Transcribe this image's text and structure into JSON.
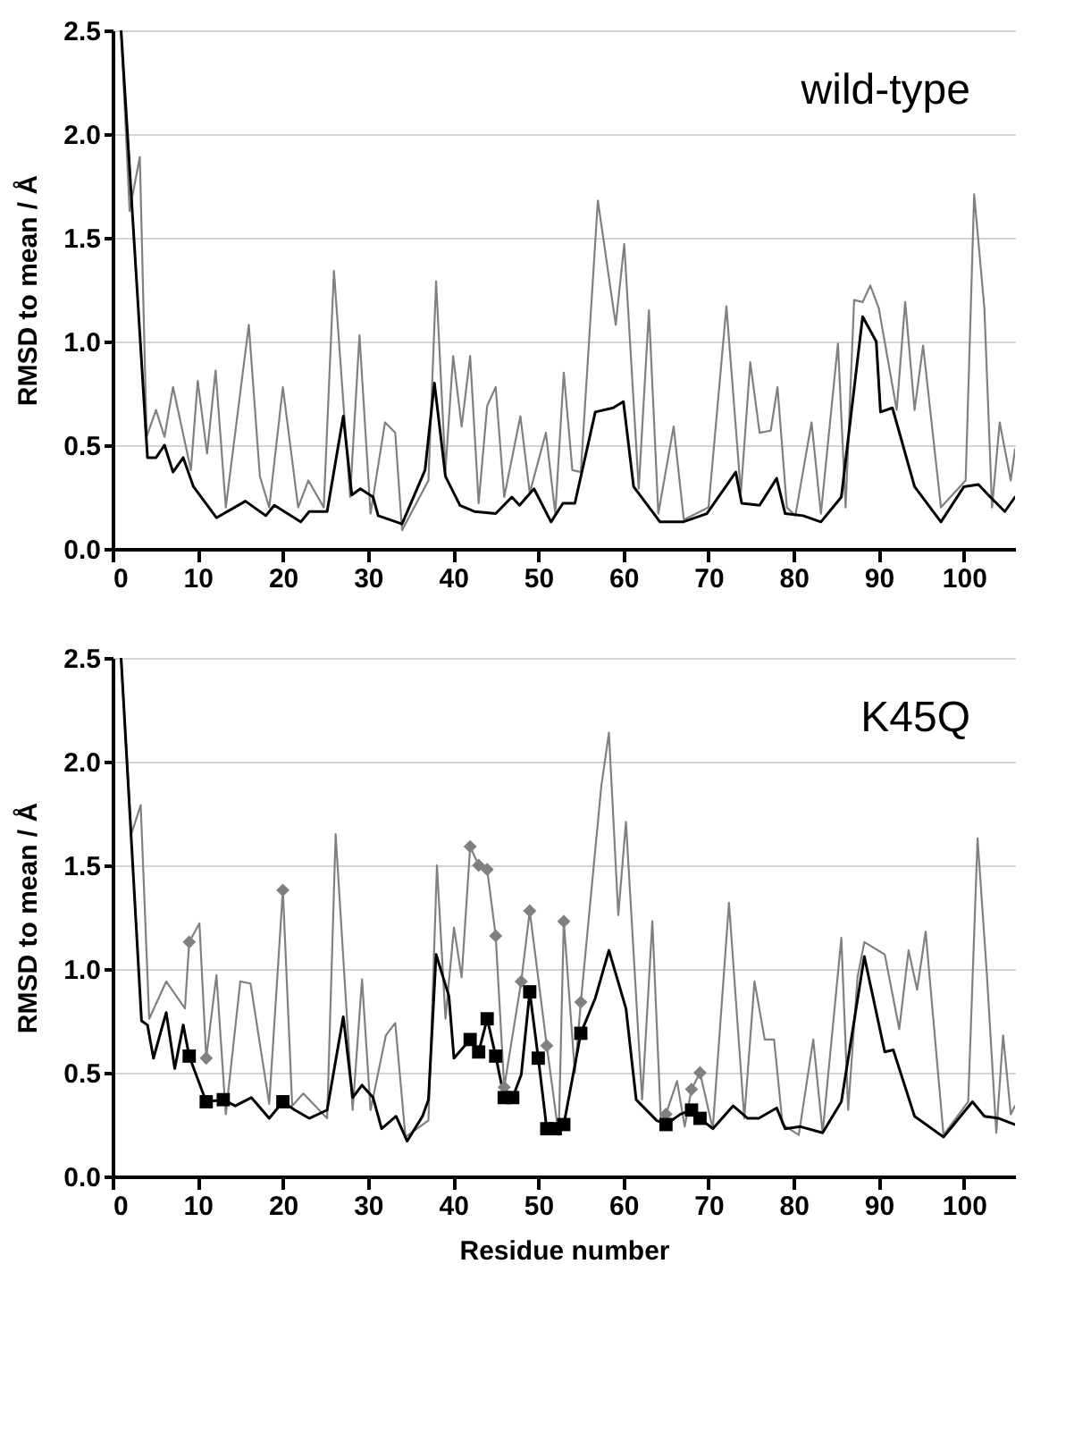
{
  "chart_data": [
    {
      "type": "line",
      "ylabel": "RMSD to mean / Å",
      "annotations": [
        "wild-type"
      ],
      "xlim": [
        0,
        106
      ],
      "xticks": [
        0,
        10,
        20,
        30,
        40,
        50,
        60,
        70,
        80,
        90,
        100
      ],
      "ylim": [
        0,
        2.5
      ],
      "yticks": [
        {
          "value": 0,
          "label": "0.0"
        },
        {
          "value": 0.5,
          "label": "0.5"
        },
        {
          "value": 1,
          "label": "1.0"
        },
        {
          "value": 1.5,
          "label": "1.5"
        },
        {
          "value": 2,
          "label": "2.0"
        },
        {
          "value": 2.5,
          "label": "2.5"
        }
      ],
      "grid": "y",
      "line_style": "solid",
      "series": [
        {
          "type": "line",
          "color": "#808080",
          "x": [
            1,
            2,
            3.2,
            4,
            5.1,
            6.1,
            7.1,
            9.2,
            10,
            11.1,
            12.1,
            13.3,
            16,
            17.3,
            18.4,
            20,
            21.8,
            23,
            24.8,
            26,
            27.9,
            29,
            30.3,
            32,
            33.2,
            34,
            37.1,
            38,
            39.1,
            40,
            41,
            42,
            43,
            44,
            45,
            46,
            47.9,
            49,
            50.9,
            52,
            53,
            54,
            55,
            57,
            59.1,
            60.1,
            61.8,
            63,
            64.1,
            65.9,
            67.1,
            70,
            72.1,
            73.8,
            74.9,
            76,
            77.3,
            78.1,
            79.2,
            80.2,
            82.1,
            83.2,
            85.2,
            86.1,
            87.1,
            88.1,
            89,
            90,
            92.1,
            93.1,
            94.2,
            95.2,
            97.3,
            100.2,
            101.2,
            102.4,
            103.3,
            104.2,
            105.5,
            106
          ],
          "values": [
            2.5,
            1.63,
            1.89,
            0.54,
            0.67,
            0.54,
            0.78,
            0.38,
            0.81,
            0.46,
            0.86,
            0.2,
            1.08,
            0.35,
            0.2,
            0.78,
            0.2,
            0.33,
            0.2,
            1.34,
            0.25,
            1.03,
            0.17,
            0.61,
            0.56,
            0.09,
            0.33,
            1.29,
            0.38,
            0.93,
            0.59,
            0.93,
            0.22,
            0.69,
            0.78,
            0.25,
            0.64,
            0.27,
            0.56,
            0.17,
            0.85,
            0.38,
            0.37,
            1.68,
            1.08,
            1.47,
            0.29,
            1.15,
            0.17,
            0.59,
            0.14,
            0.2,
            1.17,
            0.27,
            0.9,
            0.56,
            0.57,
            0.78,
            0.2,
            0.16,
            0.61,
            0.17,
            0.99,
            0.2,
            1.2,
            1.19,
            1.27,
            1.16,
            0.67,
            1.19,
            0.67,
            0.98,
            0.2,
            0.33,
            1.71,
            1.16,
            0.2,
            0.61,
            0.33,
            0.48
          ]
        },
        {
          "type": "line",
          "color": "#000000",
          "x": [
            1,
            4.1,
            5.1,
            6.1,
            7.1,
            8.3,
            9.5,
            12.2,
            15.6,
            18,
            19,
            22.1,
            23.1,
            25.2,
            27.1,
            28.1,
            29.1,
            30.6,
            31.2,
            34,
            36.7,
            37.8,
            39.1,
            40.8,
            42.5,
            45,
            46.9,
            47.8,
            49.5,
            51.5,
            52.9,
            54.3,
            56.7,
            58.8,
            60,
            61.2,
            64.3,
            67,
            69.8,
            73.2,
            73.9,
            76,
            78,
            79,
            81.1,
            83.2,
            85.6,
            88.1,
            89.7,
            90.2,
            91.6,
            94.2,
            97.3,
            100,
            101.7,
            103.1,
            104.8,
            106
          ],
          "values": [
            2.5,
            0.44,
            0.44,
            0.5,
            0.37,
            0.44,
            0.3,
            0.15,
            0.23,
            0.16,
            0.21,
            0.13,
            0.18,
            0.18,
            0.64,
            0.26,
            0.29,
            0.25,
            0.16,
            0.12,
            0.38,
            0.8,
            0.35,
            0.21,
            0.18,
            0.17,
            0.25,
            0.21,
            0.29,
            0.13,
            0.22,
            0.22,
            0.66,
            0.68,
            0.71,
            0.3,
            0.13,
            0.13,
            0.17,
            0.37,
            0.22,
            0.21,
            0.34,
            0.17,
            0.16,
            0.13,
            0.25,
            1.12,
            1.0,
            0.66,
            0.68,
            0.3,
            0.13,
            0.3,
            0.31,
            0.25,
            0.18,
            0.25
          ]
        }
      ]
    },
    {
      "type": "line",
      "xlabel": "Residue number",
      "ylabel": "RMSD to mean / Å",
      "annotations": [
        "K45Q"
      ],
      "xlim": [
        0,
        106
      ],
      "xticks": [
        0,
        10,
        20,
        30,
        40,
        50,
        60,
        70,
        80,
        90,
        100
      ],
      "ylim": [
        0,
        2.5
      ],
      "yticks": [
        {
          "value": 0,
          "label": "0.0"
        },
        {
          "value": 0.5,
          "label": "0.5"
        },
        {
          "value": 1,
          "label": "1.0"
        },
        {
          "value": 1.5,
          "label": "1.5"
        },
        {
          "value": 2,
          "label": "2.0"
        },
        {
          "value": 2.5,
          "label": "2.5"
        }
      ],
      "grid": "y",
      "line_style": "solid",
      "series": [
        {
          "type": "line",
          "color": "#808080",
          "x": [
            1,
            2.2,
            3.3,
            4.3,
            6.3,
            8.5,
            9,
            10.2,
            11,
            12.2,
            13.3,
            15,
            16.2,
            18.4,
            20,
            21.1,
            22.4,
            25.2,
            26.2,
            28.2,
            29.3,
            30.3,
            32.1,
            33.2,
            34.4,
            37.1,
            38.1,
            39.1,
            40.1,
            41,
            42,
            43,
            44,
            45,
            46,
            48,
            49,
            51,
            52.4,
            53,
            54.3,
            55,
            57.4,
            58.3,
            59.4,
            60.3,
            62.2,
            63.4,
            64.4,
            65,
            66.3,
            67.2,
            68,
            69,
            70.5,
            72.4,
            74.2,
            75.4,
            76.6,
            77.7,
            78.7,
            80.6,
            82.3,
            83.4,
            85.6,
            86.4,
            87.5,
            88.3,
            90.7,
            92.4,
            93.5,
            94.5,
            95.5,
            97.6,
            100.5,
            101.6,
            102.7,
            103.8,
            104.6,
            105.5,
            106
          ],
          "values": [
            2.5,
            1.65,
            1.79,
            0.76,
            0.94,
            0.81,
            1.13,
            1.22,
            0.57,
            0.97,
            0.3,
            0.94,
            0.93,
            0.35,
            1.38,
            0.34,
            0.4,
            0.28,
            1.65,
            0.32,
            0.95,
            0.32,
            0.68,
            0.74,
            0.19,
            0.27,
            1.5,
            0.76,
            1.2,
            0.96,
            1.59,
            1.5,
            1.48,
            1.16,
            0.43,
            0.94,
            1.28,
            0.63,
            0.2,
            1.23,
            0.5,
            0.84,
            1.88,
            2.14,
            1.26,
            1.71,
            0.37,
            1.23,
            0.27,
            0.3,
            0.46,
            0.24,
            0.42,
            0.5,
            0.23,
            1.32,
            0.28,
            0.94,
            0.66,
            0.66,
            0.25,
            0.2,
            0.66,
            0.21,
            1.15,
            0.32,
            0.96,
            1.13,
            1.07,
            0.71,
            1.09,
            0.9,
            1.18,
            0.2,
            0.36,
            1.63,
            0.97,
            0.21,
            0.68,
            0.3,
            0.34
          ]
        },
        {
          "type": "line",
          "color": "#000000",
          "x": [
            1,
            3.4,
            4.1,
            4.8,
            6.3,
            7.3,
            8.3,
            9,
            11,
            13,
            14.4,
            16.3,
            18.4,
            20,
            21.4,
            23.1,
            25.2,
            27.1,
            28.2,
            29.3,
            30.6,
            31.6,
            33.3,
            34.6,
            36.4,
            37.1,
            38,
            39.5,
            40.1,
            42,
            43,
            44,
            45,
            46,
            47,
            48,
            49,
            50,
            51,
            52,
            53,
            55,
            56.7,
            58.3,
            60.3,
            61.5,
            63.9,
            65,
            66.7,
            68,
            69,
            70.5,
            72.9,
            74.6,
            75.9,
            78,
            79,
            80.8,
            83.4,
            85.6,
            88.3,
            90.7,
            91.7,
            94.2,
            97.6,
            101,
            102.4,
            104.1,
            106
          ],
          "values": [
            2.5,
            0.75,
            0.73,
            0.57,
            0.79,
            0.52,
            0.73,
            0.58,
            0.36,
            0.37,
            0.34,
            0.38,
            0.28,
            0.36,
            0.32,
            0.28,
            0.32,
            0.77,
            0.38,
            0.44,
            0.38,
            0.23,
            0.29,
            0.17,
            0.29,
            0.37,
            1.07,
            0.87,
            0.57,
            0.66,
            0.6,
            0.76,
            0.58,
            0.38,
            0.38,
            0.49,
            0.89,
            0.57,
            0.23,
            0.23,
            0.25,
            0.69,
            0.86,
            1.09,
            0.81,
            0.37,
            0.27,
            0.25,
            0.3,
            0.32,
            0.28,
            0.23,
            0.34,
            0.28,
            0.28,
            0.33,
            0.23,
            0.24,
            0.21,
            0.36,
            1.06,
            0.6,
            0.61,
            0.29,
            0.19,
            0.36,
            0.29,
            0.28,
            0.25
          ]
        },
        {
          "type": "scatter",
          "marker": "diamond",
          "color": "#808080",
          "x": [
            9,
            11,
            20,
            42,
            43,
            44,
            45,
            46,
            48,
            49,
            51,
            53,
            55,
            65,
            68,
            69
          ],
          "values": [
            1.13,
            0.57,
            1.38,
            1.59,
            1.5,
            1.48,
            1.16,
            0.43,
            0.94,
            1.28,
            0.63,
            1.23,
            0.84,
            0.3,
            0.42,
            0.5
          ]
        },
        {
          "type": "scatter",
          "marker": "square",
          "color": "#000000",
          "x": [
            9,
            11,
            13,
            20,
            42,
            43,
            44,
            45,
            46,
            47,
            49,
            50,
            51,
            52,
            53,
            55,
            65,
            68,
            69
          ],
          "values": [
            0.58,
            0.36,
            0.37,
            0.36,
            0.66,
            0.6,
            0.76,
            0.58,
            0.38,
            0.38,
            0.89,
            0.57,
            0.23,
            0.23,
            0.25,
            0.69,
            0.25,
            0.32,
            0.28
          ]
        }
      ]
    }
  ]
}
